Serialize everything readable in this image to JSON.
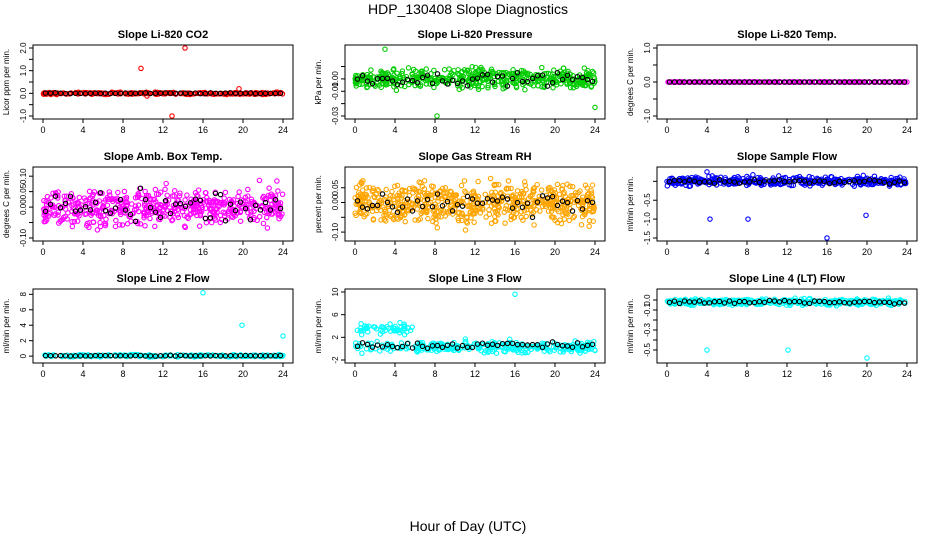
{
  "title": "HDP_130408  Slope Diagnostics",
  "xlabel": "Hour of Day (UTC)",
  "chart_data": [
    {
      "type": "scatter",
      "title": "Slope Li-820 CO2",
      "ylabel": "Licor ppm per min.",
      "xlim": [
        0,
        24
      ],
      "ylim": [
        -1.0,
        2.0
      ],
      "xticks": [
        "0",
        "4",
        "8",
        "12",
        "16",
        "20",
        "24"
      ],
      "yticks": [
        -1.0,
        -0.5,
        0.0,
        0.5,
        1.0,
        1.5,
        2.0
      ],
      "ytick_labels": [
        "-1.0",
        "",
        "0.0",
        "",
        "1.0",
        "",
        "2.0"
      ],
      "series": [
        {
          "name": "raw",
          "color": "#ff0000",
          "n": 260,
          "spread": 0.04,
          "outliers": [
            [
              9.8,
              1.1
            ],
            [
              10.4,
              -0.12
            ],
            [
              12.9,
              -1.0
            ],
            [
              14.2,
              2.0
            ],
            [
              19.6,
              0.2
            ]
          ]
        },
        {
          "name": "mean",
          "color": "#000000",
          "n": 48,
          "spread": 0.015
        }
      ]
    },
    {
      "type": "scatter",
      "title": "Slope Li-820 Pressure",
      "ylabel": "kPa per min.",
      "xlim": [
        0,
        24
      ],
      "ylim": [
        -0.03,
        0.025
      ],
      "xticks": [
        "0",
        "4",
        "8",
        "12",
        "16",
        "20",
        "24"
      ],
      "yticks": [
        -0.03,
        -0.02,
        -0.01,
        0.0,
        0.01
      ],
      "ytick_labels": [
        "-0.03",
        "",
        "-0.01",
        "0.00",
        ""
      ],
      "series": [
        {
          "name": "raw",
          "color": "#00cc00",
          "n": 460,
          "spread": 0.007,
          "outliers": [
            [
              3.0,
              0.024
            ],
            [
              8.2,
              -0.03
            ],
            [
              24.0,
              -0.023
            ]
          ]
        },
        {
          "name": "mean",
          "color": "#000000",
          "n": 48,
          "spread": 0.004
        }
      ]
    },
    {
      "type": "scatter",
      "title": "Slope Li-820 Temp.",
      "ylabel": "degrees C per min.",
      "xlim": [
        0,
        24
      ],
      "ylim": [
        -1.0,
        1.0
      ],
      "xticks": [
        "0",
        "4",
        "8",
        "12",
        "16",
        "20",
        "24"
      ],
      "yticks": [
        -1.0,
        -0.5,
        0.0,
        0.5,
        1.0
      ],
      "ytick_labels": [
        "-1.0",
        "",
        "0.0",
        "",
        "1.0"
      ],
      "series": [
        {
          "name": "raw",
          "color": "#ff00ff",
          "n": 250,
          "spread": 0.0,
          "outliers": []
        },
        {
          "name": "mean",
          "color": "#000000",
          "n": 48,
          "spread": 0.0
        }
      ]
    },
    {
      "type": "scatter",
      "title": "Slope Amb. Box Temp.",
      "ylabel": "degrees C per min.",
      "xlim": [
        0,
        24
      ],
      "ylim": [
        -0.1,
        0.12
      ],
      "xticks": [
        "0",
        "4",
        "8",
        "12",
        "16",
        "20",
        "24"
      ],
      "yticks": [
        -0.1,
        -0.05,
        0.0,
        0.05,
        0.1
      ],
      "ytick_labels": [
        "-0.10",
        "",
        "0.00",
        "0.05",
        "0.10"
      ],
      "series": [
        {
          "name": "raw",
          "color": "#ff00ff",
          "n": 520,
          "spread": 0.05,
          "outliers": []
        },
        {
          "name": "mean",
          "color": "#000000",
          "n": 48,
          "spread": 0.045
        }
      ]
    },
    {
      "type": "scatter",
      "title": "Slope Gas Stream RH",
      "ylabel": "percent per min.",
      "xlim": [
        0,
        24
      ],
      "ylim": [
        -0.12,
        0.11
      ],
      "xticks": [
        "0",
        "4",
        "8",
        "12",
        "16",
        "20",
        "24"
      ],
      "yticks": [
        -0.1,
        -0.05,
        0.0,
        0.05
      ],
      "ytick_labels": [
        "-0.10",
        "",
        "0.00",
        "0.05"
      ],
      "series": [
        {
          "name": "raw",
          "color": "#ffa500",
          "n": 620,
          "spread": 0.06,
          "outliers": []
        },
        {
          "name": "mean",
          "color": "#000000",
          "n": 48,
          "spread": 0.035
        }
      ]
    },
    {
      "type": "scatter",
      "title": "Slope Sample Flow",
      "ylabel": "ml/min per min.",
      "xlim": [
        0,
        24
      ],
      "ylim": [
        -1.5,
        0.3
      ],
      "xticks": [
        "0",
        "4",
        "8",
        "12",
        "16",
        "20",
        "24"
      ],
      "yticks": [
        -1.5,
        -1.0,
        -0.5,
        0.0
      ],
      "ytick_labels": [
        "-1.5",
        "-1.0",
        "-0.5",
        ""
      ],
      "series": [
        {
          "name": "raw",
          "color": "#0000ff",
          "n": 420,
          "spread": 0.1,
          "outliers": [
            [
              4.3,
              -1.0
            ],
            [
              8.1,
              -1.0
            ],
            [
              16.0,
              -1.5
            ],
            [
              19.9,
              -0.9
            ],
            [
              4.0,
              0.25
            ]
          ]
        },
        {
          "name": "mean",
          "color": "#000000",
          "n": 48,
          "spread": 0.05
        }
      ]
    },
    {
      "type": "scatter",
      "title": "Slope Line 2 Flow",
      "ylabel": "ml/min per min.",
      "xlim": [
        0,
        24
      ],
      "ylim": [
        -0.5,
        8.3
      ],
      "xticks": [
        "0",
        "4",
        "8",
        "12",
        "16",
        "20",
        "24"
      ],
      "yticks": [
        0,
        2,
        4,
        6,
        8
      ],
      "ytick_labels": [
        "0",
        "2",
        "4",
        "6",
        "8"
      ],
      "series": [
        {
          "name": "raw",
          "color": "#00ffff",
          "n": 220,
          "spread": 0.12,
          "outliers": [
            [
              16.0,
              8.2
            ],
            [
              19.9,
              4.0
            ],
            [
              24.0,
              2.6
            ]
          ]
        },
        {
          "name": "mean",
          "color": "#000000",
          "n": 48,
          "spread": 0.05
        }
      ]
    },
    {
      "type": "scatter",
      "title": "Slope Line 3 Flow",
      "ylabel": "ml/min per min.",
      "xlim": [
        0,
        24
      ],
      "ylim": [
        -2,
        10
      ],
      "xticks": [
        "0",
        "4",
        "8",
        "12",
        "16",
        "20",
        "24"
      ],
      "yticks": [
        -2,
        2,
        6,
        10
      ],
      "ytick_labels": [
        "-2",
        "2",
        "6",
        "10"
      ],
      "series": [
        {
          "name": "raw",
          "color": "#00ffff",
          "n": 360,
          "spread": 0.8,
          "outliers": [
            [
              16.0,
              9.6
            ],
            [
              1.0,
              4.0
            ],
            [
              2.0,
              3.8
            ],
            [
              3.2,
              3.9
            ],
            [
              4.5,
              4.6
            ]
          ]
        },
        {
          "name": "mean",
          "color": "#000000",
          "n": 48,
          "spread": 0.45
        }
      ]
    },
    {
      "type": "scatter",
      "title": "Slope Line 4 (LT) Flow",
      "ylabel": "ml/min per min.",
      "xlim": [
        0,
        24
      ],
      "ylim": [
        -0.6,
        0.08
      ],
      "xticks": [
        "0",
        "4",
        "8",
        "12",
        "16",
        "20",
        "24"
      ],
      "yticks": [
        -0.5,
        -0.4,
        -0.3,
        -0.2,
        -0.1,
        0.0
      ],
      "ytick_labels": [
        "-0.5",
        "",
        "-0.3",
        "",
        "-0.1",
        "0.0"
      ],
      "series": [
        {
          "name": "raw",
          "color": "#00ffff",
          "n": 440,
          "spread": 0.025,
          "outliers": [
            [
              4.0,
              -0.5
            ],
            [
              12.1,
              -0.5
            ],
            [
              20.0,
              -0.58
            ]
          ]
        },
        {
          "name": "mean",
          "color": "#000000",
          "n": 48,
          "spread": 0.015
        }
      ]
    }
  ]
}
